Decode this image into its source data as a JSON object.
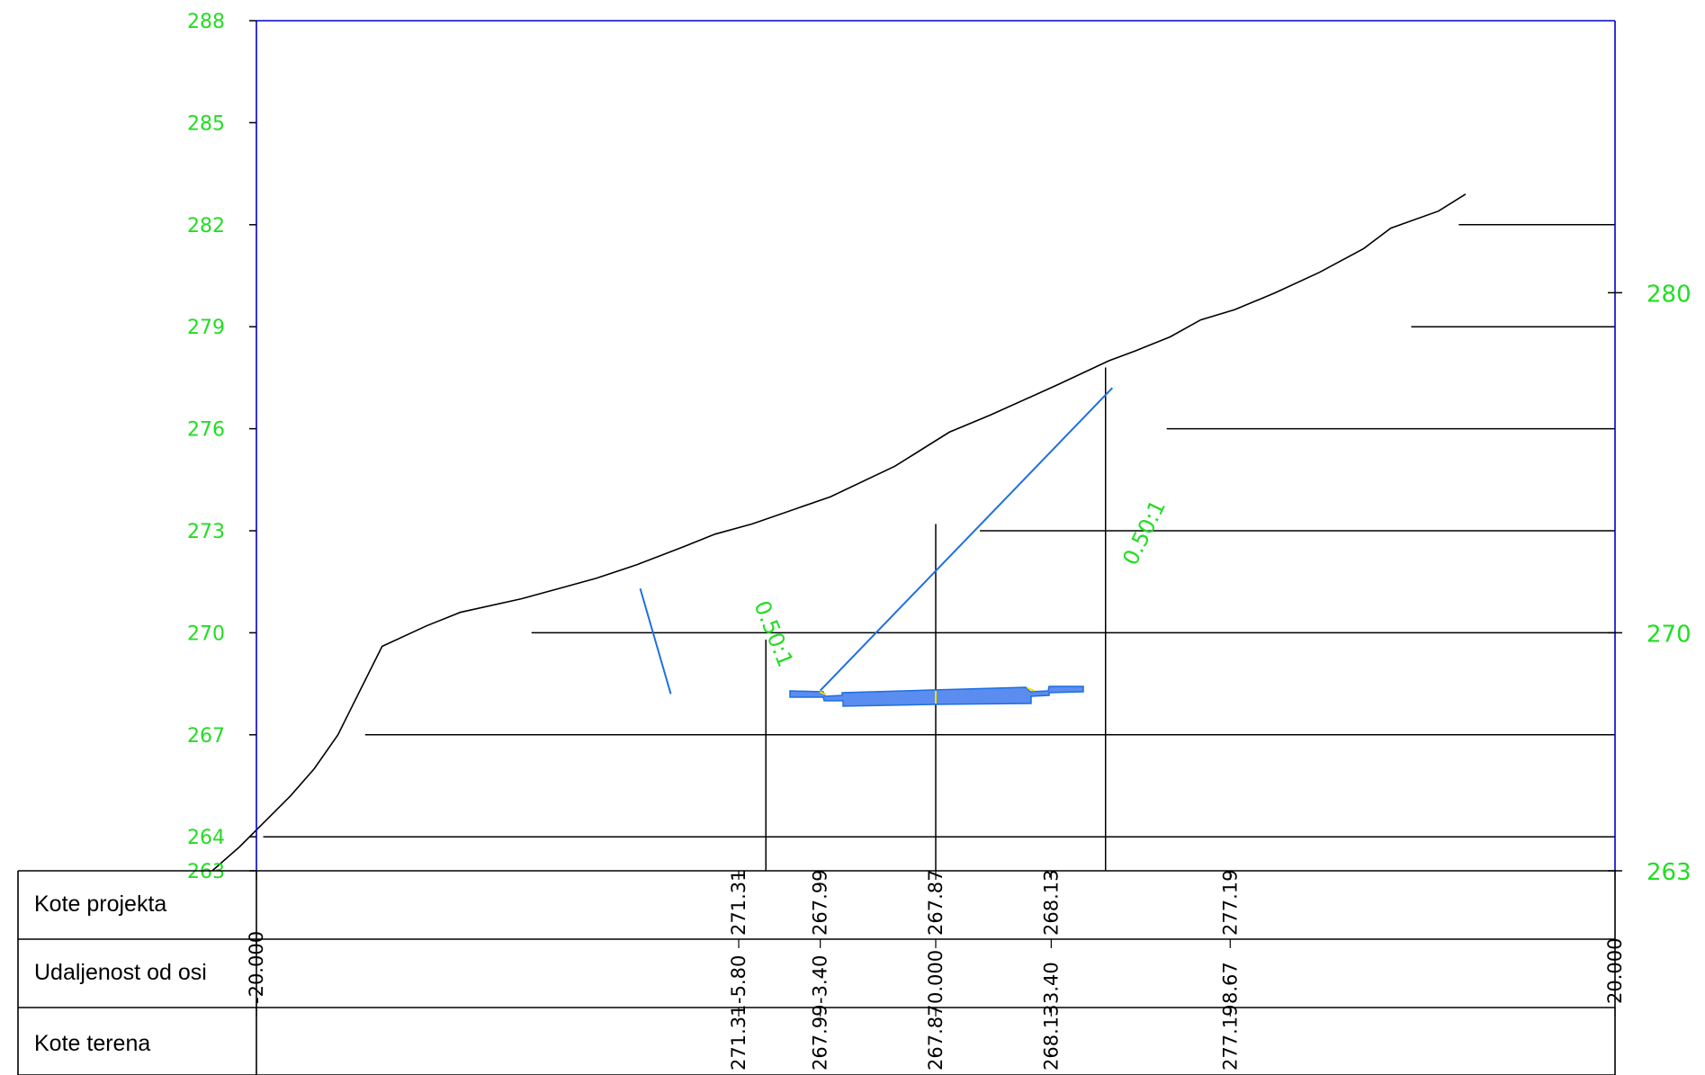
{
  "colors": {
    "frame": "#0000cc",
    "axis_text": "#22dd22",
    "terrain": "#000000",
    "design": "#1e6fe0",
    "road_fill": "#5b8cf0",
    "highlight": "#f2e000"
  },
  "left_axis": {
    "ticks": [
      "288",
      "285",
      "282",
      "279",
      "276",
      "273",
      "270",
      "267",
      "264",
      "263"
    ],
    "values": [
      288,
      285,
      282,
      279,
      276,
      273,
      270,
      267,
      264,
      263
    ]
  },
  "right_axis": {
    "ticks": [
      "280",
      "270",
      "263"
    ],
    "values": [
      280,
      270,
      263
    ]
  },
  "slope_labels": [
    "0.50:1",
    "0.50:1"
  ],
  "band": {
    "row_labels": [
      "Kote projekta",
      "Udaljenost od osi",
      "Kote terena"
    ],
    "columns": [
      {
        "offset": "-20.000",
        "kote_projekta": "",
        "kote_terena": "",
        "x": -20
      },
      {
        "offset": "-5.80",
        "kote_projekta": "271.31",
        "kote_terena": "271.31",
        "x": -5.8
      },
      {
        "offset": "-3.40",
        "kote_projekta": "267.99",
        "kote_terena": "267.99",
        "x": -3.4
      },
      {
        "offset": "0.000",
        "kote_projekta": "267.87",
        "kote_terena": "267.87",
        "x": 0
      },
      {
        "offset": "3.40",
        "kote_projekta": "268.13",
        "kote_terena": "268.13",
        "x": 3.4
      },
      {
        "offset": "8.67",
        "kote_projekta": "277.19",
        "kote_terena": "277.19",
        "x": 8.67
      },
      {
        "offset": "20.000",
        "kote_projekta": "",
        "kote_terena": "",
        "x": 20
      }
    ]
  },
  "terrain": {
    "points": [
      [
        -21.3,
        263
      ],
      [
        -20.5,
        263.7
      ],
      [
        -19.7,
        264.5
      ],
      [
        -19.0,
        265.2
      ],
      [
        -18.3,
        266.0
      ],
      [
        -17.6,
        267.0
      ],
      [
        -16.9,
        268.4
      ],
      [
        -16.3,
        269.6
      ],
      [
        -15.0,
        270.2
      ],
      [
        -14.0,
        270.6
      ],
      [
        -12.2,
        271.0
      ],
      [
        -10.0,
        271.6
      ],
      [
        -8.8,
        272.0
      ],
      [
        -7.5,
        272.5
      ],
      [
        -6.5,
        272.9
      ],
      [
        -5.4,
        273.2
      ],
      [
        -3.1,
        274.0
      ],
      [
        -1.2,
        274.9
      ],
      [
        0.4,
        275.9
      ],
      [
        1.6,
        276.4
      ],
      [
        3.6,
        277.3
      ],
      [
        5.1,
        278.0
      ],
      [
        5.9,
        278.3
      ],
      [
        6.9,
        278.7
      ],
      [
        7.8,
        279.2
      ],
      [
        8.8,
        279.5
      ],
      [
        10.0,
        280.0
      ],
      [
        11.3,
        280.6
      ],
      [
        12.6,
        281.3
      ],
      [
        13.4,
        281.9
      ],
      [
        14.8,
        282.4
      ],
      [
        15.6,
        282.9
      ]
    ],
    "grid_lines": [
      {
        "elev": 282,
        "from_x": 15.4
      },
      {
        "elev": 279,
        "from_x": 14.0
      },
      {
        "elev": 276,
        "from_x": 6.8
      },
      {
        "elev": 273,
        "from_x": 1.3
      },
      {
        "elev": 270,
        "from_x": -11.9
      },
      {
        "elev": 267,
        "from_x": -16.8
      },
      {
        "elev": 264,
        "from_x": -19.8
      }
    ],
    "vertical_lines": [
      {
        "x": -5.0,
        "top": 269.8
      },
      {
        "x": 0.0,
        "top": 273.2
      },
      {
        "x": 5.0,
        "top": 277.8
      }
    ]
  },
  "design": {
    "left_slope": [
      [
        -8.7,
        271.3
      ],
      [
        -7.8,
        268.2
      ]
    ],
    "right_slope": [
      [
        -3.4,
        268.3
      ],
      [
        5.2,
        277.2
      ]
    ]
  }
}
